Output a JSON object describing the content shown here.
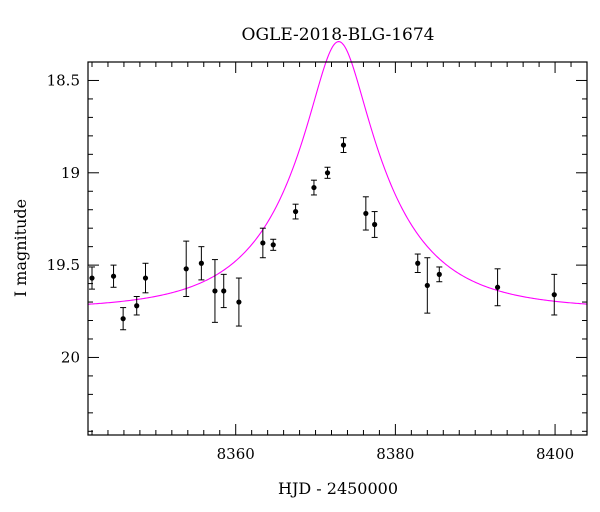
{
  "chart_data": {
    "type": "scatter",
    "title": "OGLE-2018-BLG-1674",
    "xlabel": "HJD - 2450000",
    "ylabel": "I magnitude",
    "xlim": [
      8341.5,
      8404
    ],
    "ylim": [
      20.42,
      18.4
    ],
    "y_inverted": true,
    "x_major_ticks": [
      8360,
      8380,
      8400
    ],
    "x_tick_labels": [
      "8360",
      "8380",
      "8400"
    ],
    "x_minor_step": 2,
    "y_major_ticks": [
      18.5,
      19,
      19.5,
      20
    ],
    "y_tick_labels": [
      "18.5",
      "19",
      "19.5",
      "20"
    ],
    "y_minor_step": 0.1,
    "grid": false,
    "legend": "none",
    "points_color": "#000000",
    "model_color": "#ff00ff",
    "series": [
      {
        "type": "errorbar-scatter",
        "x": [
          8342.0,
          8344.7,
          8345.9,
          8347.6,
          8348.7,
          8353.8,
          8355.7,
          8357.4,
          8358.5,
          8360.4,
          8363.4,
          8364.7,
          8367.5,
          8369.8,
          8371.5,
          8373.5,
          8376.3,
          8377.4,
          8382.8,
          8384.0,
          8385.5,
          8392.8,
          8399.9
        ],
        "y": [
          19.57,
          19.56,
          19.79,
          19.72,
          19.57,
          19.52,
          19.49,
          19.64,
          19.64,
          19.7,
          19.38,
          19.39,
          19.21,
          19.08,
          19.0,
          18.85,
          19.22,
          19.28,
          19.49,
          19.61,
          19.55,
          19.62,
          19.66
        ],
        "err": [
          0.06,
          0.06,
          0.06,
          0.05,
          0.08,
          0.15,
          0.09,
          0.17,
          0.09,
          0.13,
          0.08,
          0.03,
          0.04,
          0.04,
          0.03,
          0.04,
          0.09,
          0.07,
          0.05,
          0.15,
          0.04,
          0.1,
          0.11
        ]
      },
      {
        "type": "line",
        "model": "microlensing",
        "t0": 8372.9,
        "tE": 12,
        "u0": 0.27,
        "baseline_mag": 19.74
      }
    ]
  }
}
